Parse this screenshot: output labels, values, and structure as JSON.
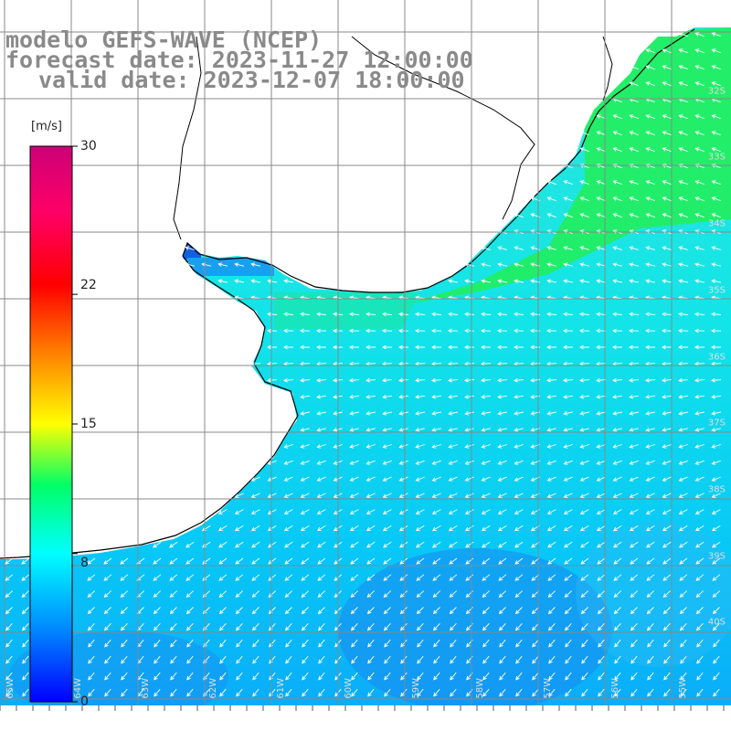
{
  "header": {
    "model_line": "modelo GEFS-WAVE (NCEP)",
    "forecast_line": "forecast date: 2023-11-27 12:00:00",
    "valid_line": "valid date: 2023-12-07 18:00:00"
  },
  "colorbar": {
    "units": "[m/s]",
    "min": 0,
    "max": 30,
    "ticks": [
      {
        "value": 30,
        "label": "30"
      },
      {
        "value": 22,
        "label": "22"
      },
      {
        "value": 15,
        "label": "15"
      },
      {
        "value": 8,
        "label": "8"
      },
      {
        "value": 0,
        "label": "0"
      }
    ]
  },
  "latitude_labels": [
    "32S",
    "33S",
    "34S",
    "35S",
    "36S",
    "37S",
    "38S",
    "39S",
    "40S"
  ],
  "longitude_labels": [
    "65W",
    "64W",
    "63W",
    "62W",
    "61W",
    "60W",
    "59W",
    "58W",
    "57W",
    "56W",
    "55W"
  ],
  "colors": {
    "land": "#ffffff",
    "grid": "#888888",
    "coast": "#000000",
    "arrow": "#ffffff",
    "title": "#8a8a8a"
  }
}
